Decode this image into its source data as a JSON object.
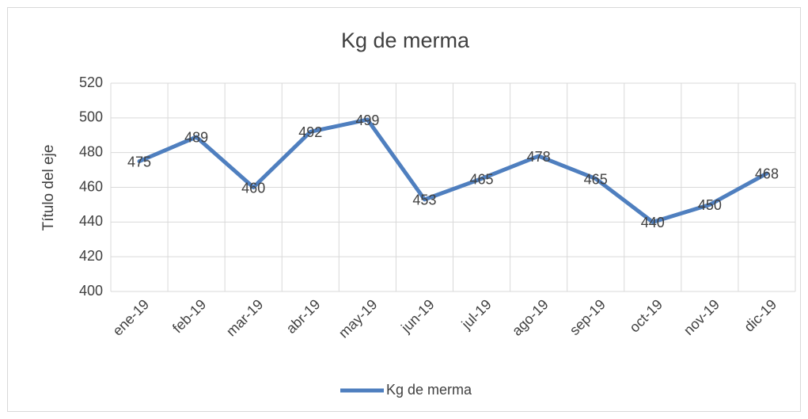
{
  "chart_data": {
    "type": "line",
    "title": "Kg de merma",
    "y_axis_label": "Título del eje",
    "categories": [
      "ene-19",
      "feb-19",
      "mar-19",
      "abr-19",
      "may-19",
      "jun-19",
      "jul-19",
      "ago-19",
      "sep-19",
      "oct-19",
      "nov-19",
      "dic-19"
    ],
    "series": [
      {
        "name": "Kg de merma",
        "color": "#4f7fbf",
        "values": [
          475,
          489,
          460,
          492,
          499,
          453,
          465,
          478,
          465,
          440,
          450,
          468
        ]
      }
    ],
    "ylim": [
      400,
      520
    ],
    "yticks": [
      400,
      420,
      440,
      460,
      480,
      500,
      520
    ],
    "grid": true,
    "legend": "bottom",
    "data_labels": true
  }
}
